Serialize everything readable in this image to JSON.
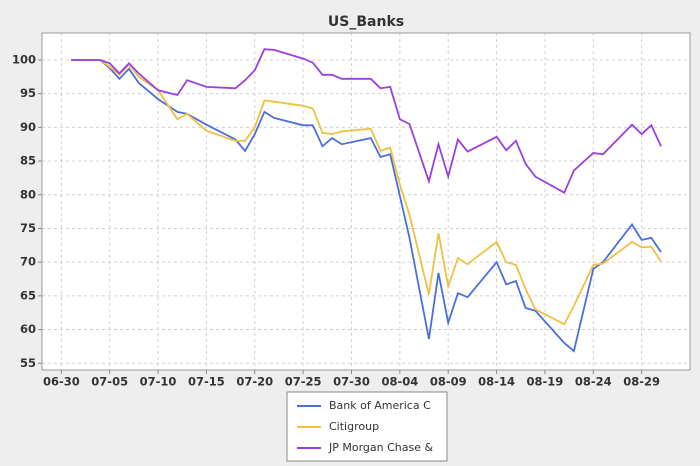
{
  "chart_data": {
    "type": "line",
    "title": "US_Banks",
    "x": [
      "07-01",
      "07-04",
      "07-05",
      "07-06",
      "07-07",
      "07-08",
      "07-10",
      "07-12",
      "07-13",
      "07-15",
      "07-18",
      "07-19",
      "07-20",
      "07-21",
      "07-22",
      "07-25",
      "07-26",
      "07-27",
      "07-28",
      "07-29",
      "08-01",
      "08-02",
      "08-03",
      "08-04",
      "08-05",
      "08-07",
      "08-08",
      "08-09",
      "08-10",
      "08-11",
      "08-14",
      "08-15",
      "08-16",
      "08-17",
      "08-18",
      "08-21",
      "08-22",
      "08-24",
      "08-25",
      "08-28",
      "08-29",
      "08-30",
      "08-31"
    ],
    "series": [
      {
        "name": "Bank of America C",
        "color": "#4a6fdc",
        "values": [
          100,
          100,
          98.8,
          97.2,
          98.7,
          96.6,
          94.2,
          92.3,
          92,
          90.4,
          88.2,
          86.5,
          89,
          92.3,
          91.4,
          90.3,
          90.3,
          87.2,
          88.4,
          87.5,
          88.4,
          85.6,
          86,
          79.8,
          73.6,
          58.6,
          68.4,
          61,
          65.4,
          64.8,
          70,
          66.7,
          67.2,
          63.2,
          62.8,
          58,
          56.8,
          69,
          70,
          75.6,
          73.3,
          73.6,
          71.5
        ]
      },
      {
        "name": "Citigroup",
        "color": "#f0c040",
        "values": [
          100,
          100,
          99,
          97.8,
          99.3,
          97.5,
          95.5,
          91.2,
          92,
          89.5,
          88,
          88,
          90,
          94,
          93.8,
          93.2,
          92.8,
          89.2,
          89,
          89.4,
          89.8,
          86.5,
          87,
          81.5,
          77,
          65.2,
          74.3,
          66.4,
          70.6,
          69.7,
          73,
          70,
          69.6,
          66,
          63,
          60.8,
          63.5,
          69.6,
          69.8,
          73,
          72.2,
          72.3,
          70.1
        ]
      },
      {
        "name": "JP Morgan Chase &",
        "color": "#9b40e0",
        "values": [
          100,
          100,
          99.5,
          98,
          99.5,
          98,
          95.5,
          94.8,
          97,
          96,
          95.8,
          97,
          98.5,
          101.6,
          101.5,
          100.2,
          99.6,
          97.8,
          97.8,
          97.2,
          97.2,
          95.8,
          96,
          91.2,
          90.5,
          82,
          87.5,
          82.7,
          88.2,
          86.4,
          88.6,
          86.6,
          88,
          84.6,
          82.7,
          80.3,
          83.6,
          86.2,
          86,
          90.4,
          89,
          90.3,
          87.2
        ]
      }
    ],
    "xlim": [
      "06-28",
      "09-03"
    ],
    "xticks": [
      "06-30",
      "07-05",
      "07-10",
      "07-15",
      "07-20",
      "07-25",
      "07-30",
      "08-04",
      "08-09",
      "08-14",
      "08-19",
      "08-24",
      "08-29"
    ],
    "ylim": [
      54,
      104
    ],
    "yticks": [
      55,
      60,
      65,
      70,
      75,
      80,
      85,
      90,
      95,
      100
    ],
    "grid": true
  }
}
